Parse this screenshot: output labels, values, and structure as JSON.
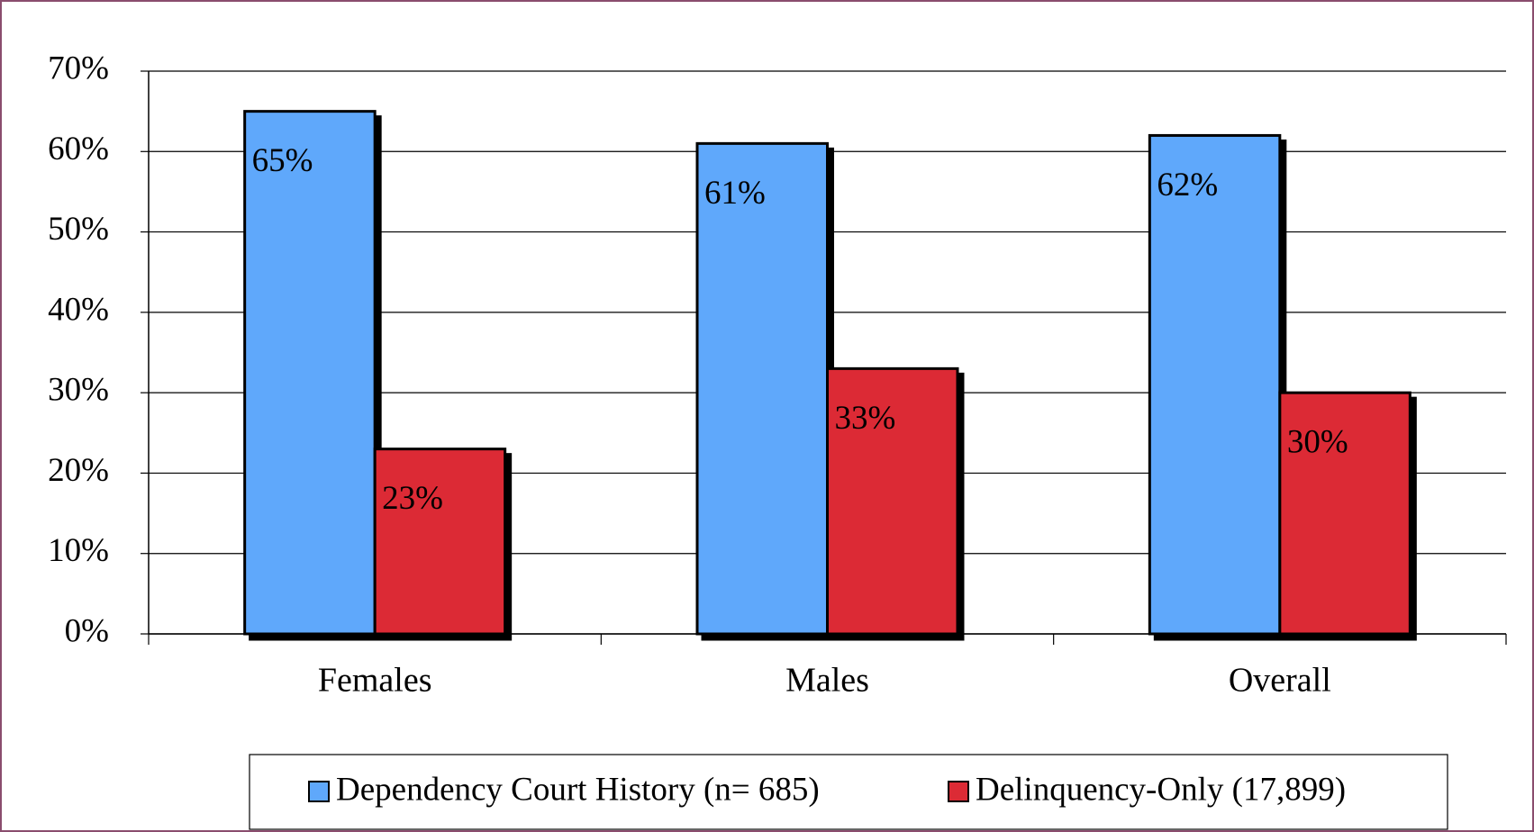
{
  "chart_data": {
    "type": "bar",
    "categories": [
      "Females",
      "Males",
      "Overall"
    ],
    "series": [
      {
        "name": "Dependency Court History (n= 685)",
        "color": "#5fa8fb",
        "values": [
          65,
          61,
          62
        ],
        "value_labels": [
          "65%",
          "61%",
          "62%"
        ]
      },
      {
        "name": "Delinquency-Only (17,899)",
        "color": "#dc2b35",
        "values": [
          23,
          33,
          30
        ],
        "value_labels": [
          "23%",
          "33%",
          "30%"
        ]
      }
    ],
    "ylim": [
      0,
      70
    ],
    "yticks": [
      {
        "value": 0,
        "label": "0%"
      },
      {
        "value": 10,
        "label": "10%"
      },
      {
        "value": 20,
        "label": "20%"
      },
      {
        "value": 30,
        "label": "30%"
      },
      {
        "value": 40,
        "label": "40%"
      },
      {
        "value": 50,
        "label": "50%"
      },
      {
        "value": 60,
        "label": "60%"
      },
      {
        "value": 70,
        "label": "70%"
      }
    ],
    "grid": true,
    "legend": "bottom"
  }
}
